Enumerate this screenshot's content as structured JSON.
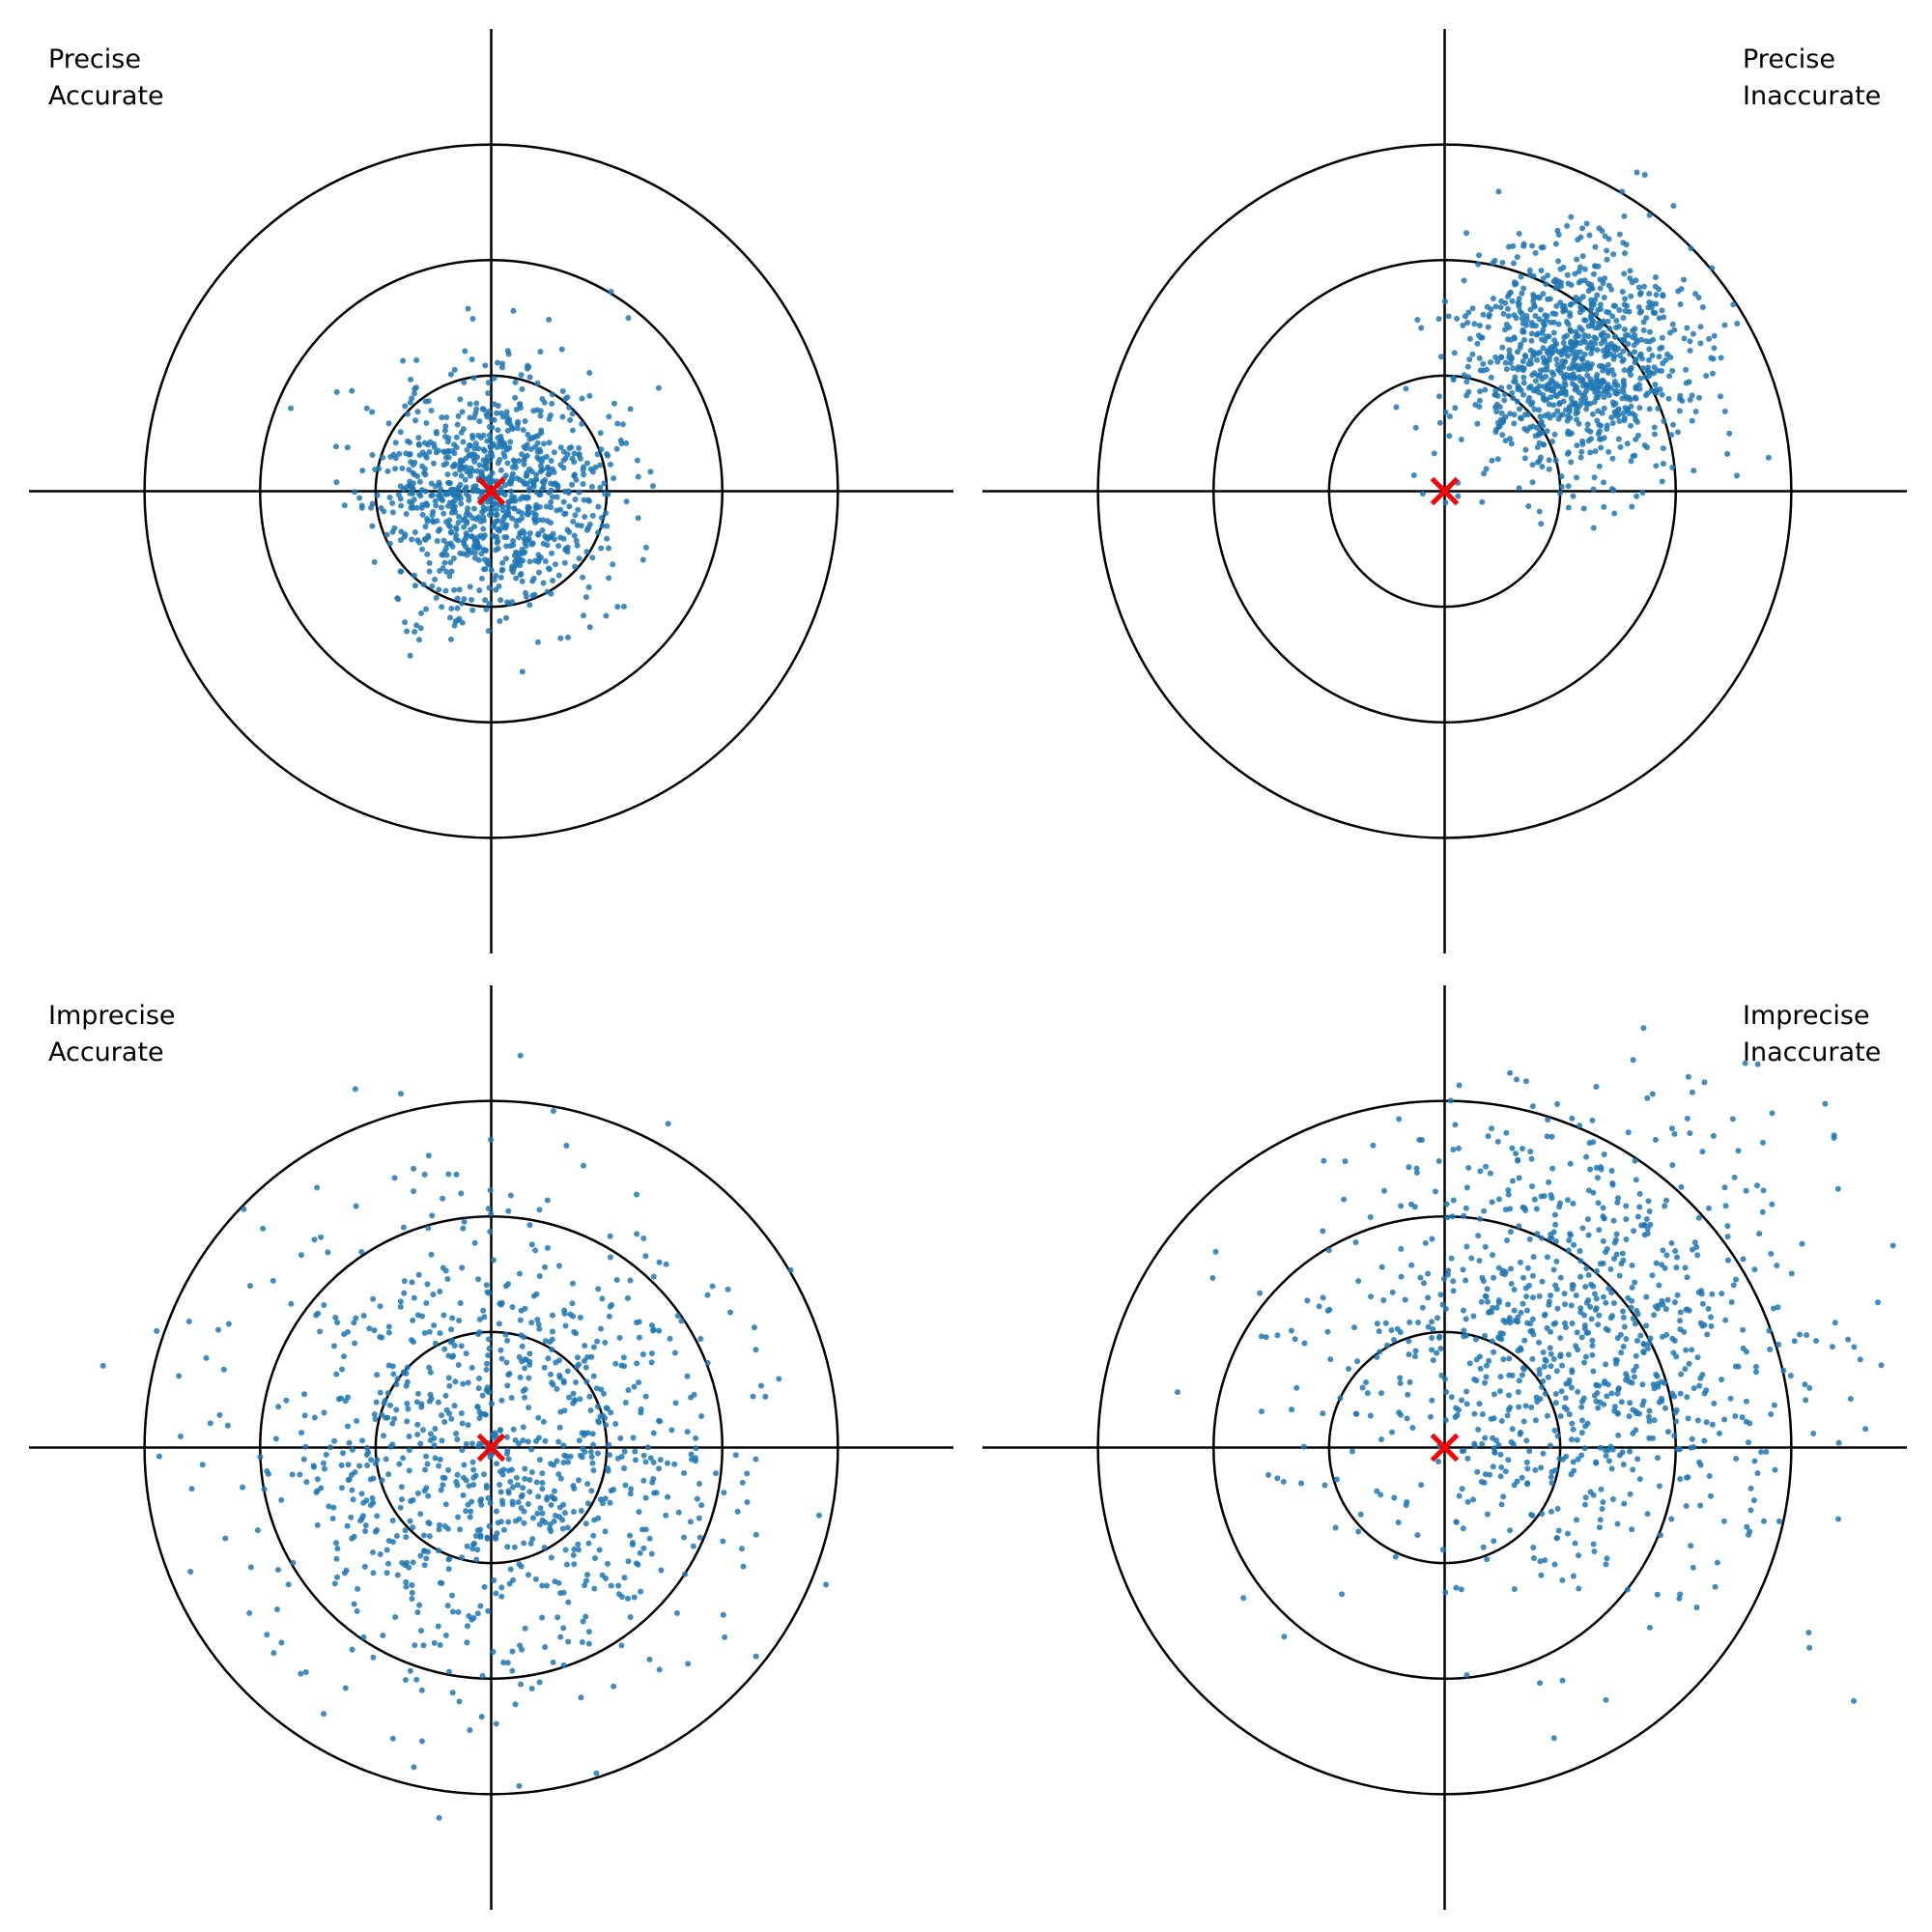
{
  "chart_data": [
    {
      "type": "scatter",
      "title": "",
      "labels": [
        "Precise",
        "Accurate"
      ],
      "label_position": "top-left",
      "xlim": [
        -2,
        2
      ],
      "ylim": [
        -2,
        2
      ],
      "rings": [
        0.5,
        1.0,
        1.5
      ],
      "target": [
        0,
        0
      ],
      "grid": false,
      "series": [
        {
          "distribution": "normal",
          "n": 1000,
          "mean": [
            0.0,
            0.0
          ],
          "std": 0.25,
          "seed": 11,
          "color": "#1f77b4"
        }
      ]
    },
    {
      "type": "scatter",
      "title": "",
      "labels": [
        "Precise",
        "Inaccurate"
      ],
      "label_position": "top-right",
      "xlim": [
        -2,
        2
      ],
      "ylim": [
        -2,
        2
      ],
      "rings": [
        0.5,
        1.0,
        1.5
      ],
      "target": [
        0,
        0
      ],
      "grid": false,
      "series": [
        {
          "distribution": "normal",
          "n": 1000,
          "mean": [
            0.55,
            0.55
          ],
          "std": 0.25,
          "seed": 23,
          "color": "#1f77b4"
        }
      ]
    },
    {
      "type": "scatter",
      "title": "",
      "labels": [
        "Imprecise",
        "Accurate"
      ],
      "label_position": "top-left",
      "xlim": [
        -2,
        2
      ],
      "ylim": [
        -2,
        2
      ],
      "rings": [
        0.5,
        1.0,
        1.5
      ],
      "target": [
        0,
        0
      ],
      "grid": false,
      "series": [
        {
          "distribution": "normal",
          "n": 1000,
          "mean": [
            0.0,
            0.0
          ],
          "std": 0.5,
          "seed": 37,
          "color": "#1f77b4"
        }
      ]
    },
    {
      "type": "scatter",
      "title": "",
      "labels": [
        "Imprecise",
        "Inaccurate"
      ],
      "label_position": "top-right",
      "xlim": [
        -2,
        2
      ],
      "ylim": [
        -2,
        2
      ],
      "rings": [
        0.5,
        1.0,
        1.5
      ],
      "target": [
        0,
        0
      ],
      "grid": false,
      "series": [
        {
          "distribution": "normal",
          "n": 1000,
          "mean": [
            0.55,
            0.45
          ],
          "std": 0.5,
          "seed": 53,
          "color": "#1f77b4"
        }
      ]
    }
  ],
  "colors": {
    "points": "#1f77b4",
    "target_marker": "#ff0000",
    "rings": "#000000",
    "axes": "#000000",
    "background": "#ffffff"
  }
}
